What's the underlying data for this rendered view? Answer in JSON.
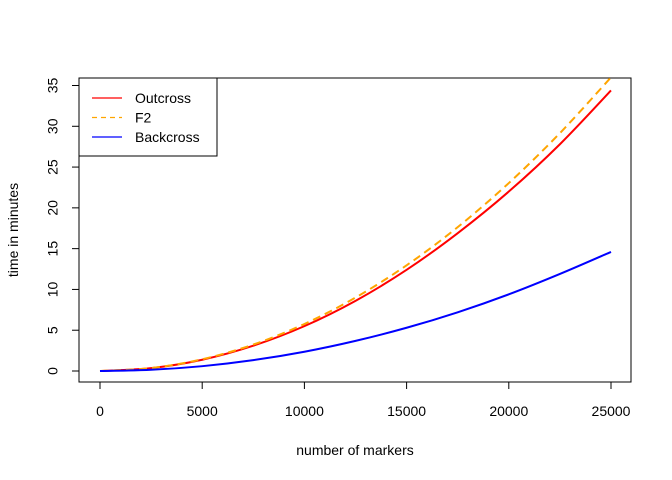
{
  "chart_data": {
    "type": "line",
    "title": "",
    "xlabel": "number of markers",
    "ylabel": "time in minutes",
    "xlim": [
      0,
      25000
    ],
    "ylim": [
      0,
      35
    ],
    "xticks": [
      0,
      5000,
      10000,
      15000,
      20000,
      25000
    ],
    "yticks": [
      0,
      5,
      10,
      15,
      20,
      25,
      30,
      35
    ],
    "grid": false,
    "legend_position": "top-left",
    "x": [
      0,
      2500,
      5000,
      7500,
      10000,
      12500,
      15000,
      17500,
      20000,
      22500,
      25000
    ],
    "series": [
      {
        "name": "Outcross",
        "color": "#ff0000",
        "dash": "solid",
        "values": [
          0,
          0.35,
          1.38,
          3.1,
          5.5,
          8.6,
          12.4,
          16.9,
          22.0,
          27.8,
          34.4
        ]
      },
      {
        "name": "F2",
        "color": "#ffa500",
        "dash": "dashed",
        "values": [
          0,
          0.36,
          1.44,
          3.24,
          5.76,
          9.0,
          12.96,
          17.64,
          23.04,
          29.16,
          36.0
        ]
      },
      {
        "name": "Backcross",
        "color": "#0000ff",
        "dash": "solid",
        "values": [
          0,
          0.15,
          0.59,
          1.33,
          2.36,
          3.69,
          5.3,
          7.2,
          9.4,
          11.9,
          14.6
        ]
      }
    ]
  }
}
